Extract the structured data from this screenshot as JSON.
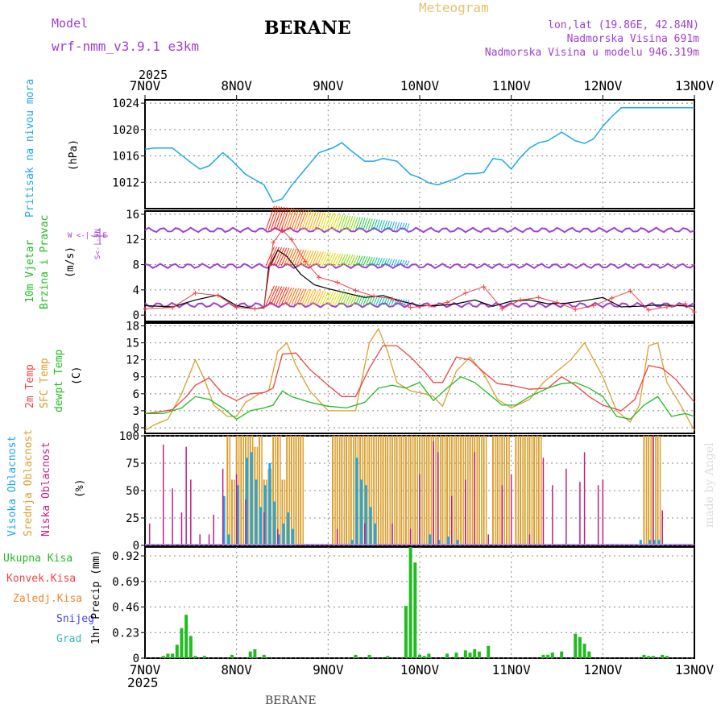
{
  "header": {
    "model_label": "Model",
    "model_name": "wrf-nmm_v3.9.1 e3km",
    "title": "BERANE",
    "meteogram_label": "Meteogram",
    "coords": "lon,lat (19.86E, 42.84N)",
    "altitude": "Nadmorska Visina 691m",
    "model_altitude": "Nadmorska Visina u modelu 946.319m",
    "year_top": "2025",
    "year_bottom": "2025",
    "footer_title": "BERANE",
    "watermark": "made by Angel"
  },
  "colors": {
    "pressure": "#1fa7e6",
    "wind_title": "#22bb22",
    "temp_2m": "#ee4444",
    "temp_sfc": "#d9a030",
    "dewpt": "#22bb22",
    "cloud_high": "#1fa7e6",
    "cloud_mid": "#d9a030",
    "cloud_low": "#c02080",
    "purple": "#a040d0",
    "precip_total": "#22bb22",
    "precip_conv": "#ee4444",
    "precip_frozen": "#ee8833",
    "precip_snow": "#4444ee",
    "precip_grad": "#33bbbb"
  },
  "chart_data": [
    {
      "type": "line",
      "panel": "pressure",
      "title": "Pritisak na nivou mora",
      "ylabel": "(hPa)",
      "ylim": [
        1008,
        1024.5
      ],
      "yticks": [
        1012,
        1016,
        1020,
        1024
      ],
      "x_days": [
        "7NOV",
        "8NOV",
        "9NOV",
        "10NOV",
        "11NOV",
        "12NOV",
        "13NOV"
      ],
      "series": [
        {
          "name": "pressure",
          "x": [
            0,
            0.1,
            0.3,
            0.5,
            0.6,
            0.7,
            0.85,
            0.95,
            1.1,
            1.2,
            1.3,
            1.4,
            1.5,
            1.6,
            1.75,
            1.9,
            2.05,
            2.15,
            2.25,
            2.4,
            2.5,
            2.6,
            2.75,
            2.9,
            3.0,
            3.1,
            3.2,
            3.3,
            3.4,
            3.5,
            3.6,
            3.7,
            3.8,
            3.9,
            4.0,
            4.1,
            4.2,
            4.3,
            4.4,
            4.55,
            4.7,
            4.8,
            4.9,
            5.0,
            5.1,
            5.2,
            5.3,
            5.4,
            5.5,
            5.6,
            5.7,
            5.8,
            5.9,
            6.0
          ],
          "values": [
            1017.0,
            1017.2,
            1017.2,
            1015,
            1014,
            1014.5,
            1016.5,
            1015.3,
            1013.2,
            1012.4,
            1011.6,
            1009,
            1009.5,
            1011.5,
            1014,
            1016.5,
            1017.2,
            1018,
            1016.8,
            1015.2,
            1015.2,
            1015.6,
            1015.2,
            1013.2,
            1012.7,
            1011.9,
            1011.6,
            1012.1,
            1012.6,
            1013.3,
            1013.3,
            1013.5,
            1015.6,
            1015.4,
            1014,
            1015.8,
            1017.2,
            1018,
            1018.3,
            1019.6,
            1018.3,
            1017.9,
            1018.6,
            1020.5,
            1022.0,
            1023.3,
            1023.3,
            1023.3,
            1023.3,
            1023.3,
            1023.3,
            1023.3,
            1023.3,
            1023.3
          ]
        }
      ]
    },
    {
      "type": "line",
      "panel": "wind",
      "title_a": "10m Vjetar",
      "title_b": "Brzina i Pravac",
      "ylabel": "(m/s)",
      "compass": "W <-|-> E",
      "compass_v": "S<-|->N",
      "ylim": [
        -1,
        16.5
      ],
      "yticks": [
        0,
        4,
        8,
        12,
        16
      ],
      "series": [
        {
          "name": "speed_mean",
          "x": [
            0,
            0.3,
            0.55,
            0.8,
            1.0,
            1.2,
            1.3,
            1.35,
            1.45,
            1.55,
            1.7,
            1.85,
            2.0,
            2.2,
            2.4,
            2.6,
            2.8,
            3.0,
            3.2,
            3.4,
            3.6,
            3.8,
            4.0,
            4.2,
            4.4,
            4.6,
            4.8,
            5.0,
            5.2,
            5.4,
            5.6,
            5.8,
            6.0
          ],
          "values": [
            1.5,
            1.3,
            2.4,
            3.2,
            1.5,
            1.0,
            1.2,
            7.5,
            10.3,
            9.3,
            6.5,
            4.8,
            4.2,
            3.5,
            2.8,
            3.1,
            2.2,
            1.5,
            1.5,
            1.8,
            2.4,
            1.4,
            2.2,
            2.4,
            1.8,
            1.9,
            2.3,
            2.8,
            1.3,
            1.4,
            1.6,
            1.5,
            1.4
          ]
        },
        {
          "name": "gust",
          "x": [
            0,
            0.3,
            0.55,
            0.8,
            1.0,
            1.2,
            1.3,
            1.4,
            1.5,
            1.6,
            1.75,
            1.9,
            2.1,
            2.3,
            2.5,
            2.7,
            2.9,
            3.1,
            3.3,
            3.5,
            3.7,
            3.9,
            4.1,
            4.3,
            4.5,
            4.7,
            4.9,
            5.1,
            5.3,
            5.5,
            5.7,
            5.9,
            6.0
          ],
          "values": [
            1.0,
            1.2,
            3.5,
            3.1,
            1.2,
            1.0,
            1.3,
            11.5,
            13.5,
            12.0,
            8.5,
            6.0,
            5.2,
            3.9,
            3.0,
            2.6,
            1.2,
            1.5,
            2.0,
            3.5,
            4.5,
            1.0,
            2.4,
            2.8,
            2.0,
            0.9,
            1.5,
            2.7,
            3.8,
            0.8,
            1.3,
            1.8,
            0.5
          ]
        }
      ]
    },
    {
      "type": "line",
      "panel": "temperature",
      "title_a": "2m Temp",
      "title_b": "SFC Temp",
      "title_c": "dewpt Temp",
      "ylabel": "(C)",
      "ylim": [
        -1,
        18.5
      ],
      "yticks": [
        0,
        3,
        6,
        9,
        12,
        15,
        18
      ],
      "series": [
        {
          "name": "2m Temp",
          "x": [
            0,
            0.15,
            0.3,
            0.45,
            0.55,
            0.7,
            0.85,
            1.0,
            1.15,
            1.3,
            1.4,
            1.5,
            1.65,
            1.8,
            2.0,
            2.15,
            2.3,
            2.45,
            2.6,
            2.75,
            2.9,
            3.05,
            3.15,
            3.25,
            3.4,
            3.55,
            3.7,
            3.85,
            4.0,
            4.2,
            4.4,
            4.55,
            4.7,
            4.85,
            5.0,
            5.2,
            5.35,
            5.5,
            5.65,
            5.8,
            6.0
          ],
          "values": [
            2.5,
            2.8,
            3.2,
            5.5,
            7.5,
            8.8,
            6.0,
            4.8,
            6.0,
            6.2,
            7.0,
            13.0,
            13.2,
            10.3,
            7.5,
            5.5,
            5.5,
            10.5,
            14.5,
            14.5,
            12.5,
            10.0,
            8.0,
            8.0,
            12.5,
            12.0,
            9.8,
            7.8,
            7.5,
            6.8,
            7.0,
            9.0,
            7.5,
            5.5,
            4.0,
            3.0,
            5.0,
            11.0,
            10.5,
            8.5,
            4.5
          ]
        },
        {
          "name": "SFC Temp",
          "x": [
            0,
            0.1,
            0.25,
            0.4,
            0.55,
            0.65,
            0.75,
            0.9,
            1.0,
            1.1,
            1.25,
            1.35,
            1.45,
            1.55,
            1.65,
            1.8,
            2.0,
            2.15,
            2.3,
            2.45,
            2.55,
            2.65,
            2.75,
            2.9,
            3.05,
            3.15,
            3.25,
            3.4,
            3.55,
            3.7,
            3.85,
            4.0,
            4.2,
            4.35,
            4.5,
            4.65,
            4.8,
            5.0,
            5.15,
            5.3,
            5.4,
            5.5,
            5.6,
            5.7,
            5.85,
            6.0
          ],
          "values": [
            -0.5,
            0.5,
            1.5,
            6.0,
            12.0,
            8.5,
            4.0,
            2.0,
            2.0,
            4.5,
            6.0,
            6.5,
            13.5,
            15.0,
            11.0,
            6.5,
            3.0,
            3.0,
            3.0,
            15.0,
            17.5,
            13.5,
            8.0,
            6.5,
            6.0,
            5.5,
            3.8,
            10.0,
            12.5,
            9.5,
            5.0,
            3.5,
            5.0,
            8.0,
            10.0,
            12.0,
            15.0,
            9.0,
            3.0,
            1.0,
            4.0,
            14.5,
            15.0,
            8.0,
            4.0,
            -0.5
          ]
        },
        {
          "name": "dewpt Temp",
          "x": [
            0,
            0.2,
            0.4,
            0.55,
            0.7,
            0.85,
            1.0,
            1.15,
            1.3,
            1.4,
            1.5,
            1.6,
            1.8,
            2.0,
            2.2,
            2.4,
            2.55,
            2.7,
            2.85,
            3.0,
            3.15,
            3.3,
            3.45,
            3.6,
            3.75,
            3.9,
            4.05,
            4.2,
            4.4,
            4.55,
            4.7,
            4.85,
            5.0,
            5.15,
            5.3,
            5.45,
            5.6,
            5.75,
            5.9,
            6.0
          ],
          "values": [
            2.5,
            2.5,
            3.5,
            5.5,
            5.0,
            3.5,
            1.5,
            3.0,
            3.5,
            4.0,
            6.5,
            5.5,
            4.5,
            3.8,
            3.5,
            4.5,
            7.0,
            7.5,
            7.0,
            8.0,
            4.8,
            7.0,
            9.0,
            8.0,
            6.0,
            4.0,
            4.0,
            5.5,
            7.0,
            7.8,
            8.0,
            7.0,
            5.5,
            2.0,
            1.5,
            4.0,
            5.5,
            2.0,
            2.5,
            2.0
          ]
        }
      ]
    },
    {
      "type": "bar",
      "panel": "clouds",
      "title_a": "Visoka Oblacnost",
      "title_b": "Srednja Oblacnost",
      "title_c": "Niska Oblacnost",
      "ylabel": "(%)",
      "ylim": [
        0,
        100
      ],
      "yticks": [
        0,
        25,
        50,
        75,
        100
      ],
      "mid_x": [
        0.9,
        0.95,
        1.0,
        1.05,
        1.1,
        1.15,
        1.2,
        1.25,
        1.3,
        1.35,
        1.4,
        1.45,
        1.5,
        1.55,
        1.6,
        1.65,
        1.7,
        2.05,
        2.1,
        2.15,
        2.2,
        2.25,
        2.3,
        2.35,
        2.4,
        2.45,
        2.5,
        2.55,
        2.6,
        2.65,
        2.7,
        2.75,
        2.8,
        2.85,
        2.9,
        2.95,
        3.0,
        3.05,
        3.1,
        3.15,
        3.2,
        3.25,
        3.3,
        3.35,
        3.4,
        3.45,
        3.5,
        3.55,
        3.6,
        3.65,
        3.7,
        3.8,
        3.85,
        3.9,
        3.95,
        4.05,
        4.1,
        4.15,
        4.2,
        4.25,
        4.3,
        5.45,
        5.5,
        5.55,
        5.6
      ],
      "mid_values": [
        100,
        60,
        100,
        100,
        100,
        100,
        90,
        100,
        60,
        70,
        100,
        100,
        60,
        100,
        100,
        100,
        100,
        100,
        100,
        100,
        100,
        100,
        100,
        100,
        100,
        100,
        100,
        100,
        100,
        100,
        100,
        100,
        100,
        100,
        100,
        100,
        100,
        100,
        100,
        100,
        100,
        100,
        100,
        100,
        100,
        100,
        100,
        100,
        100,
        100,
        100,
        100,
        100,
        100,
        100,
        100,
        100,
        100,
        100,
        100,
        100,
        100,
        100,
        100,
        100
      ],
      "high_x": [
        0.85,
        0.9,
        1.0,
        1.1,
        1.15,
        1.2,
        1.25,
        1.3,
        1.35,
        1.4,
        1.45,
        1.5,
        1.55,
        1.6,
        2.25,
        2.3,
        2.35,
        2.4,
        2.45,
        2.5,
        3.1,
        3.2,
        3.3,
        3.4,
        5.4,
        5.5,
        5.55,
        5.6
      ],
      "high_values": [
        45,
        10,
        55,
        80,
        85,
        60,
        35,
        55,
        75,
        40,
        10,
        20,
        30,
        15,
        5,
        80,
        60,
        55,
        35,
        20,
        10,
        5,
        8,
        5,
        5,
        5,
        5,
        5
      ],
      "low_x": [
        0.05,
        0.2,
        0.3,
        0.4,
        0.45,
        0.5,
        0.6,
        0.7,
        0.75,
        0.85,
        1.0,
        1.1,
        1.3,
        1.45,
        2.1,
        2.4,
        2.7,
        2.9,
        3.0,
        3.15,
        3.2,
        3.35,
        3.5,
        3.6,
        3.75,
        3.9,
        4.0,
        4.2,
        4.35,
        4.45,
        4.6,
        4.75,
        4.8,
        4.95,
        5.0,
        5.55,
        5.65
      ],
      "low_values": [
        20,
        92,
        52,
        30,
        90,
        60,
        10,
        10,
        28,
        70,
        65,
        42,
        30,
        15,
        15,
        20,
        20,
        15,
        65,
        95,
        85,
        45,
        60,
        85,
        10,
        55,
        65,
        10,
        80,
        55,
        70,
        58,
        85,
        55,
        60,
        100,
        32
      ]
    },
    {
      "type": "bar",
      "panel": "precip",
      "legend": [
        "Ukupna Kisa",
        "Konvek.Kisa",
        "Zaledj.Kisa",
        "Snijeg",
        "Grad"
      ],
      "ylabel": "1hr Precip (mm)",
      "ylim": [
        0,
        1.0
      ],
      "yticks": [
        0,
        0.23,
        0.46,
        0.69,
        0.92
      ],
      "x": [
        0.2,
        0.25,
        0.3,
        0.35,
        0.4,
        0.45,
        0.5,
        0.55,
        0.65,
        0.95,
        1.15,
        1.2,
        1.3,
        2.3,
        2.45,
        2.65,
        2.85,
        2.9,
        2.95,
        3.0,
        3.05,
        3.1,
        3.3,
        3.4,
        3.5,
        3.55,
        3.6,
        3.65,
        3.75,
        4.35,
        4.4,
        4.45,
        4.55,
        4.7,
        4.75,
        4.8,
        4.85,
        5.45,
        5.5,
        5.55,
        5.65,
        5.7
      ],
      "values": [
        0.02,
        0.04,
        0.04,
        0.12,
        0.27,
        0.39,
        0.2,
        0.02,
        0.02,
        0.03,
        0.06,
        0.08,
        0.03,
        0.03,
        0.03,
        0.02,
        0.47,
        1.0,
        0.86,
        0.03,
        0.02,
        0.04,
        0.04,
        0.05,
        0.07,
        0.05,
        0.08,
        0.06,
        0.11,
        0.03,
        0.03,
        0.05,
        0.06,
        0.22,
        0.19,
        0.13,
        0.06,
        0.03,
        0.02,
        0.02,
        0.03,
        0.02
      ]
    }
  ]
}
